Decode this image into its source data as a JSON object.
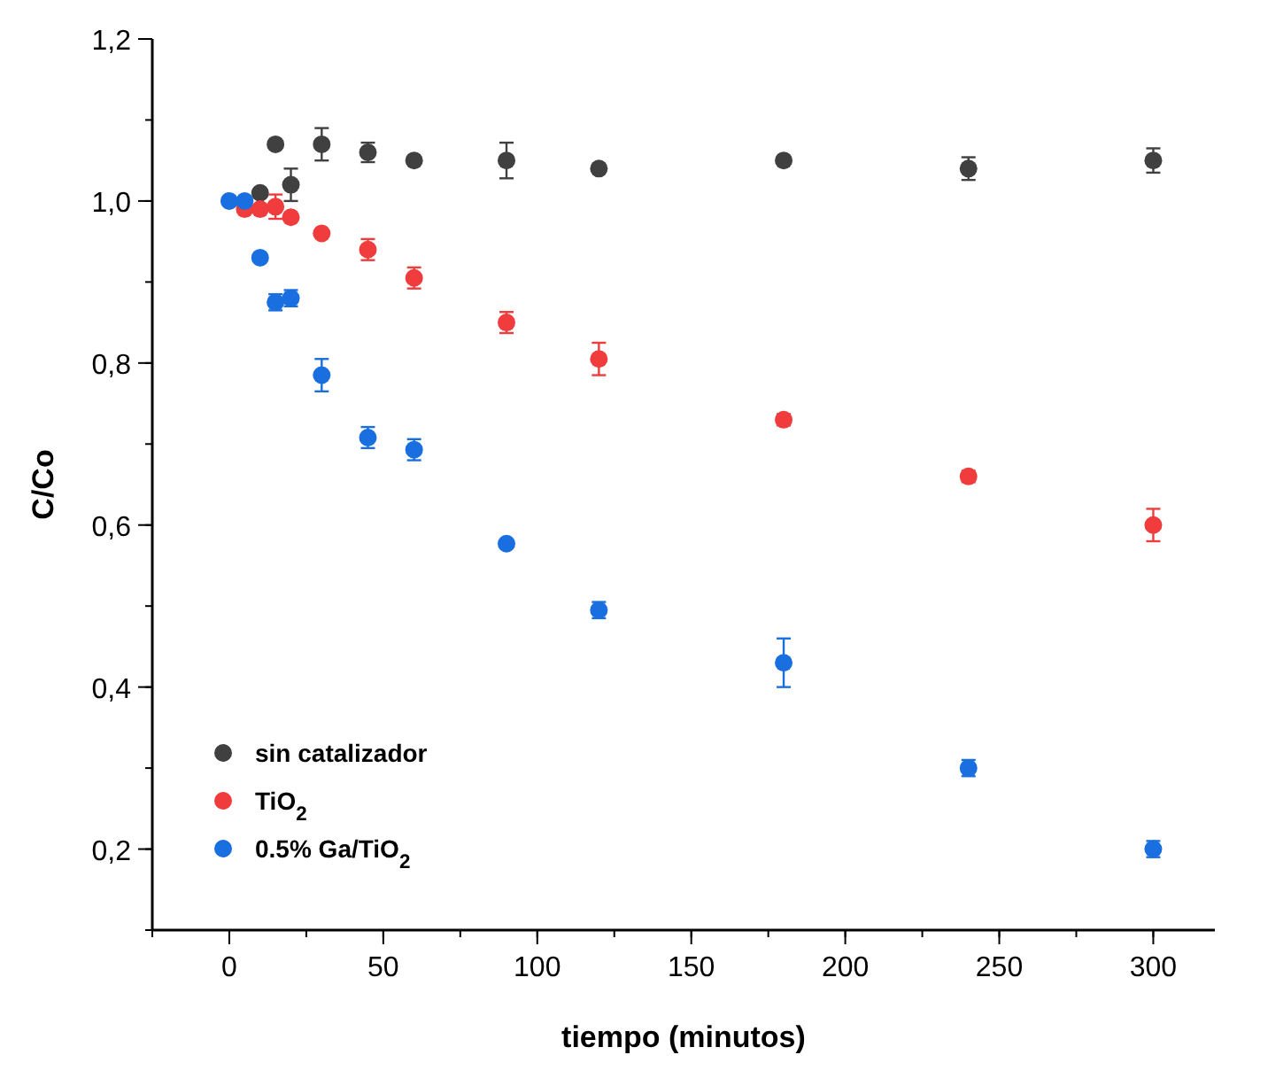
{
  "chart_data": {
    "type": "scatter",
    "xlabel": "tiempo (minutos)",
    "ylabel": "C/Co",
    "xlim": [
      -25,
      320
    ],
    "ylim": [
      0.1,
      1.2
    ],
    "xticks": [
      0,
      50,
      100,
      150,
      200,
      250,
      300
    ],
    "yticks": [
      {
        "value": 0.2,
        "label": "0,2"
      },
      {
        "value": 0.4,
        "label": "0,4"
      },
      {
        "value": 0.6,
        "label": "0,6"
      },
      {
        "value": 0.8,
        "label": "0,8"
      },
      {
        "value": 1.0,
        "label": "1,0"
      },
      {
        "value": 1.2,
        "label": "1,2"
      }
    ],
    "grid": false,
    "legend": "bottom left",
    "marker": "circle",
    "series": [
      {
        "name": "sin catalizador",
        "color": "#404040",
        "x": [
          10,
          15,
          20,
          30,
          45,
          60,
          90,
          120,
          180,
          240,
          300
        ],
        "values": [
          1.01,
          1.07,
          1.02,
          1.07,
          1.06,
          1.05,
          1.05,
          1.04,
          1.05,
          1.04,
          1.05
        ],
        "errors": [
          null,
          null,
          0.02,
          0.02,
          0.012,
          null,
          0.022,
          null,
          null,
          0.014,
          0.015
        ]
      },
      {
        "name": "TiO$_{2}$",
        "color": "#f03c3c",
        "x": [
          5,
          10,
          15,
          20,
          30,
          45,
          60,
          90,
          120,
          180,
          240,
          300
        ],
        "values": [
          0.99,
          0.99,
          0.993,
          0.98,
          0.96,
          0.94,
          0.905,
          0.85,
          0.805,
          0.73,
          0.66,
          0.6
        ],
        "errors": [
          null,
          null,
          0.015,
          null,
          null,
          0.013,
          0.013,
          0.013,
          0.02,
          0.007,
          0.007,
          0.02
        ]
      },
      {
        "name": "0.5% Ga/TiO$_{2}$",
        "color": "#1a6fe0",
        "x": [
          0,
          5,
          10,
          15,
          20,
          30,
          45,
          60,
          90,
          120,
          180,
          240,
          300
        ],
        "values": [
          1.0,
          1.0,
          0.93,
          0.875,
          0.88,
          0.785,
          0.708,
          0.693,
          0.577,
          0.495,
          0.43,
          0.3,
          0.2
        ],
        "errors": [
          null,
          null,
          null,
          0.01,
          0.01,
          0.02,
          0.013,
          0.013,
          null,
          0.01,
          0.03,
          0.01,
          0.01
        ]
      }
    ]
  }
}
